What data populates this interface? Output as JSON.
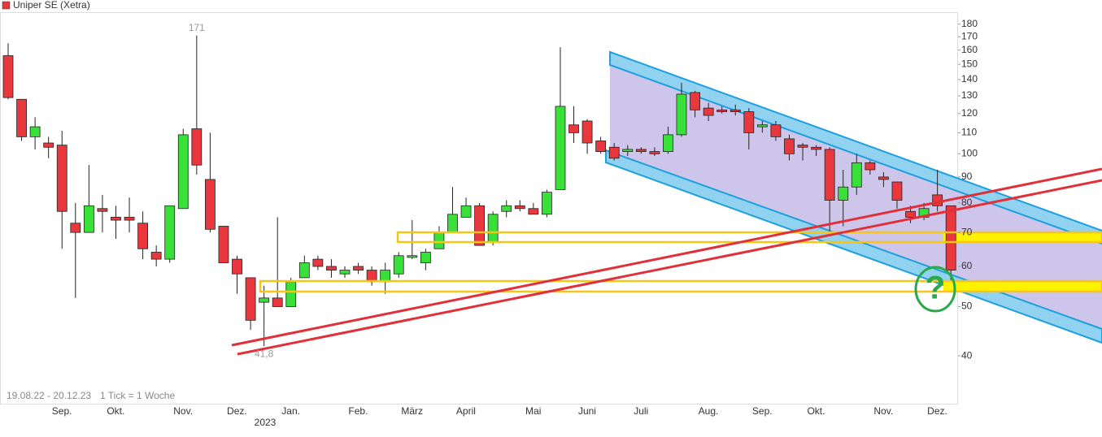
{
  "chart_data": {
    "type": "candlestick",
    "title": "Uniper SE (Xetra)",
    "footer": [
      "19.08.22 - 20.12.23",
      "1 Tick = 1 Woche"
    ],
    "year_label": "2023",
    "log_scale": true,
    "ylim": [
      32.2,
      190
    ],
    "yticks": [
      40,
      50,
      60,
      70,
      80,
      90,
      100,
      110,
      120,
      130,
      140,
      150,
      160,
      170,
      180
    ],
    "up_color": "#3ae03a",
    "down_color": "#e8383d",
    "categories": [
      null,
      null,
      "Sep.",
      null,
      null,
      null,
      "Okt.",
      null,
      null,
      null,
      null,
      "Nov.",
      null,
      null,
      null,
      "Dez.",
      null,
      null,
      null,
      "Jan.",
      null,
      null,
      null,
      null,
      "Feb.",
      null,
      null,
      null,
      "März",
      null,
      null,
      null,
      "April",
      null,
      null,
      null,
      null,
      "Mai",
      null,
      null,
      null,
      "Juni",
      null,
      null,
      null,
      "Juli",
      null,
      null,
      null,
      null,
      "Aug.",
      null,
      null,
      null,
      "Sep.",
      null,
      null,
      null,
      "Okt.",
      null,
      null,
      null,
      null,
      "Nov.",
      null,
      null,
      null,
      "Dez.",
      null,
      null,
      null
    ],
    "open": [
      156,
      128,
      108,
      105,
      104,
      73,
      70,
      78,
      75,
      75,
      73,
      64,
      62,
      78,
      112,
      89,
      72,
      62,
      57,
      51,
      52,
      50,
      57,
      62,
      60,
      58,
      60,
      59,
      56,
      58,
      62.5,
      61,
      65,
      70,
      75,
      79,
      67,
      77,
      79,
      78,
      76,
      85,
      114,
      116,
      106,
      103,
      101,
      102,
      101,
      101,
      109,
      132,
      123,
      122,
      122,
      121,
      113,
      114,
      107,
      104,
      103,
      102,
      81,
      86,
      96,
      90,
      88,
      77,
      75,
      83,
      79
    ],
    "high": [
      165,
      128,
      118,
      108,
      111,
      80,
      95,
      83,
      79,
      82,
      77,
      66,
      79,
      112,
      171,
      110,
      72,
      63,
      57,
      55,
      75,
      57,
      63,
      63,
      62,
      60,
      61,
      60,
      61,
      64,
      74,
      65,
      72,
      86,
      82,
      80,
      77,
      81,
      81,
      80,
      85,
      162,
      124,
      117,
      108,
      105,
      104,
      103,
      103,
      113,
      138,
      133,
      126,
      124,
      125,
      123,
      116,
      116,
      109,
      105,
      104,
      103,
      93,
      100,
      97,
      92,
      88,
      79,
      80,
      93,
      79
    ],
    "low": [
      128,
      106,
      102,
      98,
      65,
      52,
      70,
      70,
      68,
      70,
      62,
      60,
      61,
      78,
      91,
      70,
      61,
      53,
      45,
      41.8,
      50,
      50,
      57,
      59,
      57,
      57,
      58,
      55,
      53,
      57,
      62,
      59,
      65,
      70,
      75,
      66,
      66,
      75,
      77,
      76,
      75,
      85,
      105,
      100,
      100,
      97,
      99,
      100,
      99,
      100,
      108,
      118,
      116,
      120,
      119,
      102,
      110,
      106,
      97,
      97,
      99,
      70,
      72,
      83,
      91,
      86,
      78,
      73,
      74,
      77,
      56
    ],
    "close": [
      129,
      108,
      113,
      103,
      77,
      70,
      79,
      77,
      74,
      74,
      65,
      62,
      79,
      109,
      95,
      71,
      61,
      58,
      47,
      52,
      50,
      56,
      61,
      60,
      59,
      59,
      59,
      56,
      59,
      63,
      63,
      64,
      70,
      76,
      79,
      66,
      76,
      79,
      78,
      76,
      84,
      124,
      110,
      105,
      101,
      98,
      102,
      101,
      100,
      109,
      131,
      122,
      119,
      121,
      121,
      110,
      114,
      108,
      100,
      103,
      102,
      81,
      86,
      96,
      93,
      89,
      81,
      75,
      78,
      79,
      59
    ],
    "annotations": [
      {
        "label": "171",
        "index": 14,
        "value": 171
      },
      {
        "label": "41,8",
        "index": 19,
        "value": 41.8
      },
      {
        "label": "?"
      }
    ]
  }
}
